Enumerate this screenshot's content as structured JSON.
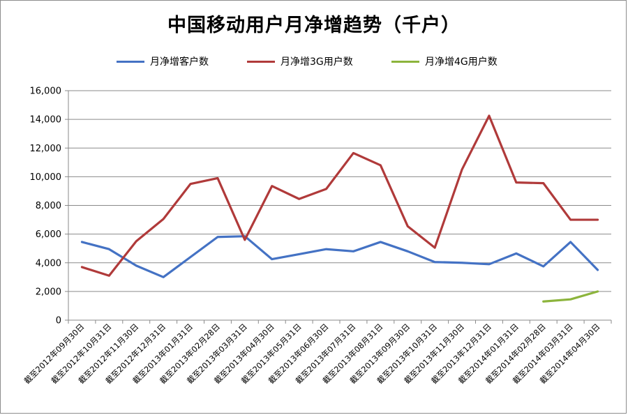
{
  "chart_data": {
    "type": "line",
    "title": "中国移动用户月净增趋势（千户）",
    "xlabel": "",
    "ylabel": "",
    "ylim": [
      0,
      16000
    ],
    "yticks": [
      0,
      2000,
      4000,
      6000,
      8000,
      10000,
      12000,
      14000,
      16000
    ],
    "ytick_labels": [
      "0",
      "2,000",
      "4,000",
      "6,000",
      "8,000",
      "10,000",
      "12,000",
      "14,000",
      "16,000"
    ],
    "grid": true,
    "legend_position": "top",
    "categories": [
      "截至2012年09月30日",
      "截至2012年10月31日",
      "截至2012年11月30日",
      "截至2012年12月31日",
      "截至2013年01月31日",
      "截至2013年02月28日",
      "截至2013年03月31日",
      "截至2013年04月30日",
      "截至2013年05月31日",
      "截至2013年06月30日",
      "截至2013年07月31日",
      "截至2013年08月31日",
      "截至2013年09月30日",
      "截至2013年10月31日",
      "截至2013年11月30日",
      "截至2013年12月31日",
      "截至2014年01月31日",
      "截至2014年02月28日",
      "截至2014年03月31日",
      "截至2014年04月30日"
    ],
    "series": [
      {
        "name": "月净增客户数",
        "color": "#4472c4",
        "values": [
          5450,
          4950,
          3800,
          3000,
          4400,
          5800,
          5850,
          4250,
          4600,
          4950,
          4800,
          5450,
          4800,
          4050,
          4000,
          3900,
          4650,
          3750,
          5450,
          3500
        ]
      },
      {
        "name": "月净增3G用户数",
        "color": "#b03a3a",
        "values": [
          3700,
          3100,
          5500,
          7050,
          9500,
          9900,
          5600,
          9350,
          8450,
          9150,
          11650,
          10800,
          6550,
          5050,
          10500,
          14250,
          9600,
          9550,
          7000,
          7000
        ]
      },
      {
        "name": "月净增4G用户数",
        "color": "#8cb43c",
        "values": [
          null,
          null,
          null,
          null,
          null,
          null,
          null,
          null,
          null,
          null,
          null,
          null,
          null,
          null,
          null,
          null,
          null,
          1300,
          1450,
          2000
        ]
      }
    ]
  }
}
